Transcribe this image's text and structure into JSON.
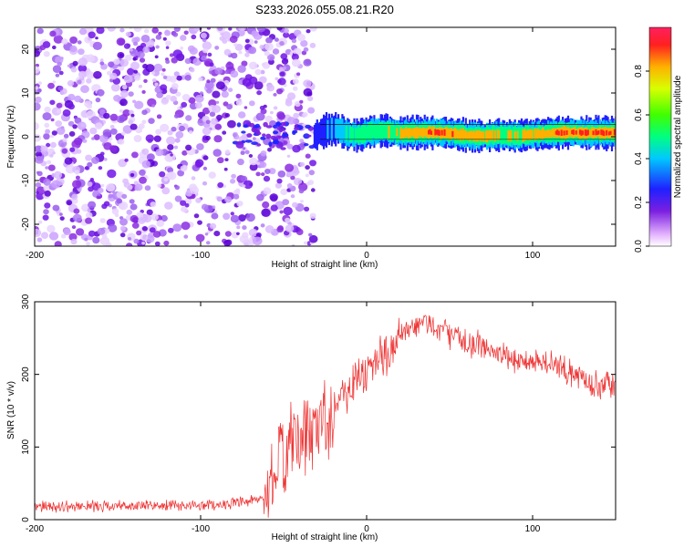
{
  "title": "S233.2026.055.08.21.R20",
  "chart_data": [
    {
      "type": "heatmap",
      "xlabel": "Height of straight line (km)",
      "ylabel": "Frequency (Hz)",
      "xlim": [
        -200,
        150
      ],
      "ylim": [
        -25,
        25
      ],
      "xticks": [
        -200,
        -100,
        0,
        100
      ],
      "yticks": [
        -20,
        -10,
        0,
        10,
        20
      ],
      "colorbar": {
        "label": "Normalized spectral amplitude",
        "range": [
          0,
          1
        ],
        "ticks": [
          "0.0",
          "0.2",
          "0.4",
          "0.6",
          "0.8"
        ]
      },
      "noise_region_x": [
        -200,
        -32
      ],
      "ridge": {
        "x": [
          -32,
          -25,
          -18,
          -12,
          -5,
          2,
          10,
          20,
          30,
          40,
          50,
          60,
          70,
          80,
          90,
          100,
          110,
          120,
          130,
          150
        ],
        "freq": [
          0.2,
          1.5,
          1.8,
          0.6,
          0.4,
          1.2,
          1.4,
          0.8,
          1.0,
          1.0,
          0.8,
          0.3,
          0.2,
          0.4,
          0.2,
          0.5,
          0.8,
          1.0,
          0.9,
          0.9
        ],
        "amp": [
          0.2,
          0.3,
          0.45,
          0.5,
          0.55,
          0.6,
          0.65,
          0.7,
          0.8,
          0.9,
          0.85,
          0.8,
          0.75,
          0.7,
          0.7,
          0.75,
          0.85,
          0.9,
          0.92,
          0.92
        ]
      }
    },
    {
      "type": "line",
      "xlabel": "Height of straight line (km)",
      "ylabel": "SNR (10 * v/v)",
      "xlim": [
        -200,
        150
      ],
      "ylim": [
        0,
        300
      ],
      "xticks": [
        -200,
        -100,
        0,
        100
      ],
      "yticks": [
        0,
        100,
        200,
        300
      ],
      "color": "#ee3030",
      "series": [
        {
          "name": "SNR",
          "x": [
            -200,
            -180,
            -160,
            -140,
            -120,
            -100,
            -80,
            -70,
            -62,
            -55,
            -50,
            -40,
            -30,
            -20,
            -10,
            0,
            10,
            20,
            30,
            35,
            40,
            50,
            60,
            70,
            80,
            90,
            100,
            110,
            120,
            130,
            140,
            150
          ],
          "y": [
            18,
            18,
            19,
            19,
            19,
            20,
            22,
            25,
            28,
            65,
            90,
            110,
            130,
            155,
            185,
            205,
            225,
            250,
            265,
            272,
            268,
            255,
            245,
            238,
            228,
            218,
            220,
            215,
            205,
            195,
            185,
            185
          ]
        }
      ]
    }
  ]
}
